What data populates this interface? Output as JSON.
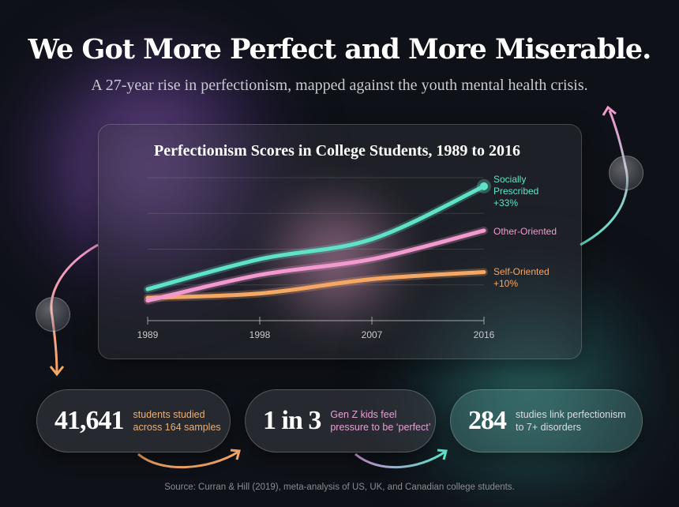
{
  "header": {
    "title": "We Got More Perfect and More Miserable.",
    "subtitle": "A 27-year rise in perfectionism, mapped against the youth mental health crisis."
  },
  "chart_data": {
    "type": "line",
    "title": "Perfectionism Scores in College Students, 1989 to 2016",
    "x": [
      1989,
      1998,
      2007,
      2016
    ],
    "xticks": [
      "1989",
      "1998",
      "2007",
      "2016"
    ],
    "ylim": [
      0,
      100
    ],
    "grid": true,
    "legend": "right (inline labels at line ends)",
    "series": [
      {
        "name": "Socially Prescribed",
        "annotation": "+33%",
        "color": "#5fe3c8",
        "values": [
          22,
          43,
          57,
          94
        ]
      },
      {
        "name": "Other-Oriented",
        "annotation": "",
        "color": "#f29ad0",
        "values": [
          14,
          32,
          43,
          63
        ]
      },
      {
        "name": "Self-Oriented",
        "annotation": "+10%",
        "color": "#f5a765",
        "values": [
          16,
          19,
          29,
          34
        ]
      }
    ]
  },
  "stats": [
    {
      "number": "41,641",
      "line1": "students studied",
      "line2": "across 164 samples",
      "color": "#e9b07a"
    },
    {
      "number": "1 in 3",
      "line1": "Gen Z kids feel",
      "line2": "pressure to be ‘perfect’",
      "color": "#e6a2d3"
    },
    {
      "number": "284",
      "line1": "studies link perfectionism",
      "line2": "to 7+ disorders",
      "color": "#d8dde0"
    }
  ],
  "footer": {
    "source": "Source: Curran & Hill (2019), meta-analysis of US, UK, and Canadian college students."
  }
}
